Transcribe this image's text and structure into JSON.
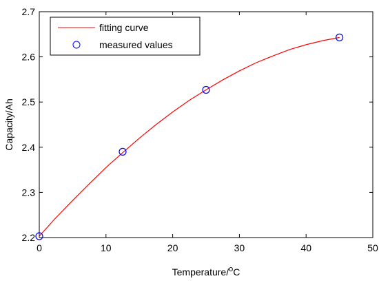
{
  "chart_data": {
    "type": "scatter",
    "title": "",
    "xlabel": "Temperature/",
    "xlabel_superscript": "o",
    "xlabel_suffix": "C",
    "ylabel": "Capacity/Ah",
    "xlim": [
      0,
      50
    ],
    "ylim": [
      2.2,
      2.7
    ],
    "x_ticks": [
      0,
      10,
      20,
      30,
      40,
      50
    ],
    "x_tick_labels": [
      "0",
      "10",
      "20",
      "30",
      "40",
      "50"
    ],
    "y_ticks": [
      2.2,
      2.3,
      2.4,
      2.5,
      2.6,
      2.7
    ],
    "y_tick_labels": [
      "2.2",
      "2.3",
      "2.4",
      "2.5",
      "2.6",
      "2.7"
    ],
    "grid": false,
    "legend_position": "top-left",
    "series": [
      {
        "name": "fitting curve",
        "kind": "line",
        "color": "#ff0000",
        "x": [
          0,
          2.5,
          5,
          7.5,
          10,
          12.5,
          15,
          17.5,
          20,
          22.5,
          25,
          27.5,
          30,
          32.5,
          35,
          37.5,
          40,
          42.5,
          45
        ],
        "y": [
          2.203,
          2.244,
          2.282,
          2.319,
          2.355,
          2.388,
          2.42,
          2.45,
          2.478,
          2.504,
          2.527,
          2.549,
          2.569,
          2.587,
          2.602,
          2.616,
          2.627,
          2.636,
          2.643
        ]
      },
      {
        "name": "measured values",
        "kind": "marker",
        "color": "#0000ff",
        "x": [
          0,
          12.5,
          25,
          45
        ],
        "y": [
          2.203,
          2.39,
          2.527,
          2.643
        ]
      }
    ]
  }
}
